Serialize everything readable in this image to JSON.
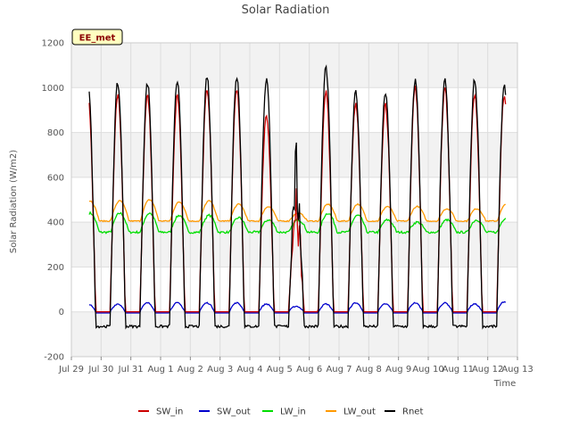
{
  "chart_data": {
    "type": "line",
    "title": "Solar Radiation",
    "xlabel": "Time",
    "ylabel": "Solar Radiation (W/m2)",
    "badge": "EE_met",
    "ylim": [
      -200,
      1200
    ],
    "yticks": [
      -200,
      0,
      200,
      400,
      600,
      800,
      1000,
      1200
    ],
    "xlim": [
      0,
      15
    ],
    "xticks": [
      {
        "x": 0,
        "label": "Jul 29"
      },
      {
        "x": 1,
        "label": "Jul 30"
      },
      {
        "x": 2,
        "label": "Jul 31"
      },
      {
        "x": 3,
        "label": "Aug 1"
      },
      {
        "x": 4,
        "label": "Aug 2"
      },
      {
        "x": 5,
        "label": "Aug 3"
      },
      {
        "x": 6,
        "label": "Aug 4"
      },
      {
        "x": 7,
        "label": "Aug 5"
      },
      {
        "x": 8,
        "label": "Aug 6"
      },
      {
        "x": 9,
        "label": "Aug 7"
      },
      {
        "x": 10,
        "label": "Aug 8"
      },
      {
        "x": 11,
        "label": "Aug 9"
      },
      {
        "x": 12,
        "label": "Aug 10"
      },
      {
        "x": 13,
        "label": "Aug 11"
      },
      {
        "x": 14,
        "label": "Aug 12"
      },
      {
        "x": 15,
        "label": "Aug 13"
      }
    ],
    "grid": true,
    "legend_position": "bottom",
    "days": [
      "Jul 30",
      "Jul 31",
      "Aug 1",
      "Aug 2",
      "Aug 3",
      "Aug 4",
      "Aug 5",
      "Aug 6",
      "Aug 7",
      "Aug 8",
      "Aug 9",
      "Aug 10",
      "Aug 11",
      "Aug 12"
    ],
    "series": [
      {
        "name": "SW_in",
        "color": "#cc0000",
        "daily_peak": [
          965,
          970,
          960,
          1000,
          1000,
          880,
          560,
          980,
          930,
          930,
          1000,
          1000,
          970,
          970
        ],
        "night": 0
      },
      {
        "name": "SW_out",
        "color": "#0000cc",
        "daily_peak": [
          35,
          40,
          40,
          40,
          40,
          35,
          25,
          35,
          40,
          35,
          40,
          40,
          35,
          45
        ],
        "night": -5
      },
      {
        "name": "LW_in",
        "color": "#00dd00",
        "daily_peak": [
          440,
          440,
          430,
          430,
          420,
          410,
          410,
          440,
          430,
          410,
          400,
          410,
          410,
          420
        ],
        "night": 355
      },
      {
        "name": "LW_out",
        "color": "#ff9900",
        "daily_peak": [
          495,
          500,
          490,
          495,
          480,
          470,
          440,
          480,
          480,
          470,
          470,
          460,
          460,
          480
        ],
        "night": 405
      },
      {
        "name": "Rnet",
        "color": "#000000",
        "daily_peak": [
          1020,
          1020,
          1030,
          1050,
          1055,
          1040,
          750,
          1085,
          980,
          980,
          1030,
          1030,
          1035,
          1015
        ],
        "night": -65
      }
    ]
  }
}
